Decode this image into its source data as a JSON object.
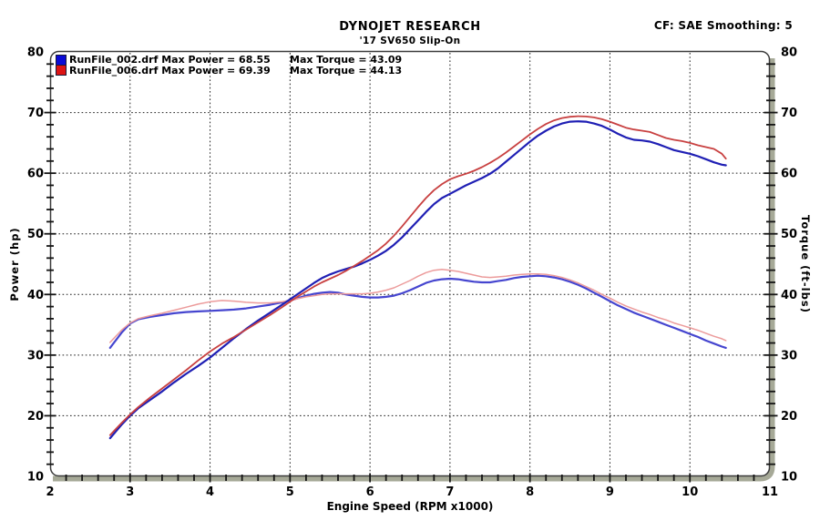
{
  "header": {
    "title": "DYNOJET RESEARCH",
    "subtitle": "'17 SV650 Slip-On",
    "correction_info": "CF: SAE  Smoothing: 5"
  },
  "legend": [
    {
      "color": "#0b0bd6",
      "file": "RunFile_002.drf",
      "power_text": "RunFile_002.drf Max Power = 68.55",
      "torque_text": "Max Torque = 43.09"
    },
    {
      "color": "#dd1414",
      "file": "RunFile_006.drf",
      "power_text": "RunFile_006.drf Max Power = 69.39",
      "torque_text": "Max Torque = 44.13"
    }
  ],
  "chart_data": {
    "type": "line",
    "title": "DYNOJET RESEARCH",
    "subtitle": "'17 SV650 Slip-On",
    "xlabel": "Engine Speed (RPM x1000)",
    "ylabel_left": "Power (hp)",
    "ylabel_right": "Torque (ft-lbs)",
    "xlim": [
      2,
      11
    ],
    "ylim": [
      10,
      80
    ],
    "x_ticks": [
      2,
      3,
      4,
      5,
      6,
      7,
      8,
      9,
      10,
      11
    ],
    "x_minor_step": 0.2,
    "y_ticks": [
      10,
      20,
      30,
      40,
      50,
      60,
      70,
      80
    ],
    "y_minor_step": 2,
    "grid": "dotted black at major ticks",
    "legend_position": "top-left",
    "frame_shadow_color": "#a6a997",
    "max_values": {
      "runfile_002": {
        "max_power": 68.55,
        "max_torque": 43.09
      },
      "runfile_006": {
        "max_power": 69.39,
        "max_torque": 44.13
      }
    },
    "x": [
      2.75,
      2.9,
      3.0,
      3.1,
      3.25,
      3.4,
      3.55,
      3.7,
      3.85,
      4.0,
      4.15,
      4.3,
      4.45,
      4.6,
      4.75,
      4.9,
      5.0,
      5.1,
      5.2,
      5.3,
      5.4,
      5.5,
      5.6,
      5.7,
      5.8,
      5.9,
      6.0,
      6.1,
      6.2,
      6.3,
      6.4,
      6.5,
      6.6,
      6.7,
      6.8,
      6.9,
      7.0,
      7.1,
      7.2,
      7.3,
      7.4,
      7.5,
      7.6,
      7.7,
      7.8,
      7.9,
      8.0,
      8.1,
      8.2,
      8.3,
      8.4,
      8.5,
      8.6,
      8.7,
      8.8,
      8.9,
      9.0,
      9.1,
      9.2,
      9.3,
      9.4,
      9.5,
      9.6,
      9.7,
      9.8,
      9.9,
      10.0,
      10.1,
      10.2,
      10.3,
      10.4,
      10.45
    ],
    "series": [
      {
        "name": "runfile-002-torque",
        "label": "RunFile_002.drf Torque (ft-lbs)",
        "axis": "right",
        "color": "#4545cf",
        "width": 2.2,
        "y": [
          31.2,
          33.8,
          35.2,
          35.9,
          36.3,
          36.6,
          36.9,
          37.1,
          37.2,
          37.3,
          37.4,
          37.5,
          37.7,
          38.0,
          38.3,
          38.7,
          39.0,
          39.4,
          39.8,
          40.1,
          40.3,
          40.4,
          40.3,
          40.0,
          39.8,
          39.6,
          39.5,
          39.5,
          39.6,
          39.8,
          40.2,
          40.7,
          41.3,
          41.9,
          42.3,
          42.5,
          42.6,
          42.5,
          42.3,
          42.1,
          42.0,
          42.0,
          42.2,
          42.4,
          42.7,
          42.9,
          43.0,
          43.09,
          43.0,
          42.8,
          42.5,
          42.1,
          41.6,
          41.0,
          40.3,
          39.6,
          38.9,
          38.2,
          37.6,
          37.0,
          36.5,
          36.0,
          35.5,
          35.0,
          34.5,
          34.0,
          33.5,
          33.0,
          32.4,
          31.9,
          31.4,
          31.2
        ]
      },
      {
        "name": "runfile-006-torque",
        "label": "RunFile_006.drf Torque (ft-lbs)",
        "axis": "right",
        "color": "#ec9b9b",
        "width": 1.5,
        "y": [
          32.1,
          34.2,
          35.3,
          36.0,
          36.5,
          36.9,
          37.4,
          37.9,
          38.4,
          38.8,
          39.0,
          38.9,
          38.7,
          38.6,
          38.6,
          38.8,
          39.0,
          39.3,
          39.6,
          39.8,
          40.0,
          40.1,
          40.1,
          40.1,
          40.1,
          40.1,
          40.2,
          40.4,
          40.7,
          41.1,
          41.7,
          42.3,
          43.0,
          43.6,
          44.0,
          44.13,
          44.0,
          43.8,
          43.5,
          43.2,
          42.9,
          42.8,
          42.9,
          43.0,
          43.2,
          43.3,
          43.4,
          43.4,
          43.3,
          43.1,
          42.8,
          42.4,
          41.9,
          41.3,
          40.7,
          40.0,
          39.4,
          38.7,
          38.1,
          37.6,
          37.1,
          36.7,
          36.2,
          35.8,
          35.3,
          34.9,
          34.5,
          34.1,
          33.6,
          33.1,
          32.7,
          32.4
        ]
      },
      {
        "name": "runfile-002-power",
        "label": "RunFile_002.drf Power (hp)",
        "axis": "left",
        "color": "#1f1fb4",
        "width": 2.2,
        "y": [
          16.3,
          18.6,
          20.0,
          21.2,
          22.6,
          24.0,
          25.5,
          26.9,
          28.2,
          29.6,
          31.2,
          32.8,
          34.3,
          35.7,
          37.0,
          38.3,
          39.2,
          40.1,
          41.0,
          41.9,
          42.7,
          43.3,
          43.8,
          44.2,
          44.6,
          45.1,
          45.7,
          46.4,
          47.2,
          48.2,
          49.4,
          50.8,
          52.2,
          53.6,
          54.9,
          55.9,
          56.6,
          57.3,
          58.0,
          58.6,
          59.2,
          59.9,
          60.8,
          61.9,
          63.0,
          64.1,
          65.2,
          66.2,
          67.0,
          67.7,
          68.2,
          68.5,
          68.55,
          68.5,
          68.2,
          67.8,
          67.2,
          66.5,
          65.9,
          65.5,
          65.4,
          65.2,
          64.8,
          64.3,
          63.8,
          63.5,
          63.2,
          62.8,
          62.3,
          61.8,
          61.4,
          61.3
        ]
      },
      {
        "name": "runfile-006-power",
        "label": "RunFile_006.drf Power (hp)",
        "axis": "left",
        "color": "#c84040",
        "width": 1.8,
        "y": [
          16.8,
          18.9,
          20.2,
          21.4,
          23.0,
          24.5,
          26.0,
          27.5,
          29.1,
          30.6,
          31.9,
          33.0,
          34.2,
          35.4,
          36.6,
          37.9,
          38.8,
          39.7,
          40.5,
          41.3,
          42.0,
          42.6,
          43.2,
          43.9,
          44.7,
          45.5,
          46.4,
          47.3,
          48.4,
          49.7,
          51.2,
          52.8,
          54.4,
          55.9,
          57.2,
          58.2,
          59.0,
          59.5,
          59.9,
          60.4,
          61.0,
          61.7,
          62.5,
          63.4,
          64.4,
          65.4,
          66.4,
          67.3,
          68.1,
          68.7,
          69.1,
          69.3,
          69.39,
          69.35,
          69.2,
          68.9,
          68.5,
          68.0,
          67.5,
          67.2,
          67.0,
          66.8,
          66.3,
          65.8,
          65.5,
          65.3,
          65.0,
          64.6,
          64.3,
          64.0,
          63.2,
          62.4
        ]
      }
    ]
  }
}
